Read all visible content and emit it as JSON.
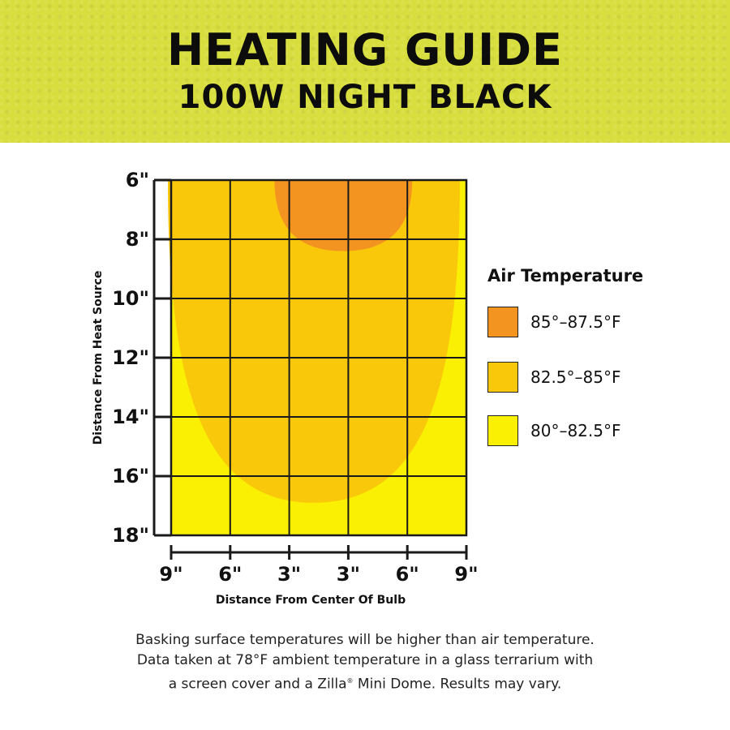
{
  "header": {
    "title": "HEATING GUIDE",
    "subtitle": "100W NIGHT BLACK"
  },
  "legend": {
    "title": "Air Temperature",
    "items": [
      {
        "label": "85°–87.5°F",
        "color": "#f39420"
      },
      {
        "label": "82.5°–85°F",
        "color": "#fac80a"
      },
      {
        "label": "80°–82.5°F",
        "color": "#f9f003"
      }
    ]
  },
  "chart_data": {
    "type": "heatmap",
    "xlabel": "Distance From Center Of Bulb",
    "ylabel": "Distance From Heat Source",
    "x_ticks": [
      "9\"",
      "6\"",
      "3\"",
      "3\"",
      "6\"",
      "9\""
    ],
    "y_ticks": [
      "6\"",
      "8\"",
      "10\"",
      "12\"",
      "14\"",
      "16\"",
      "18\""
    ],
    "x_values": [
      -9,
      -6,
      -3,
      3,
      6,
      9
    ],
    "y_values": [
      6,
      8,
      10,
      12,
      14,
      16,
      18
    ],
    "xlim": [
      -9,
      9
    ],
    "ylim": [
      6,
      18
    ],
    "grid": true,
    "zones": [
      {
        "range": "80°–82.5°F",
        "color": "#f9f003",
        "extent": "fills 6\"–18\" depth and full 9\" width"
      },
      {
        "range": "82.5°–85°F",
        "color": "#fac80a",
        "max_depth_in": 16.9,
        "half_width_in": 8.9
      },
      {
        "range": "85°–87.5°F",
        "color": "#f39420",
        "max_depth_in": 8.4,
        "half_width_in": 4.2
      }
    ]
  },
  "footnote": {
    "line1": "Basking surface temperatures will be higher than air temperature.",
    "line2": "Data taken at 78°F ambient temperature in a glass terrarium with",
    "line3a": "a screen cover and a Zilla",
    "line3_mark": "®",
    "line3b": " Mini Dome. Results may vary."
  }
}
